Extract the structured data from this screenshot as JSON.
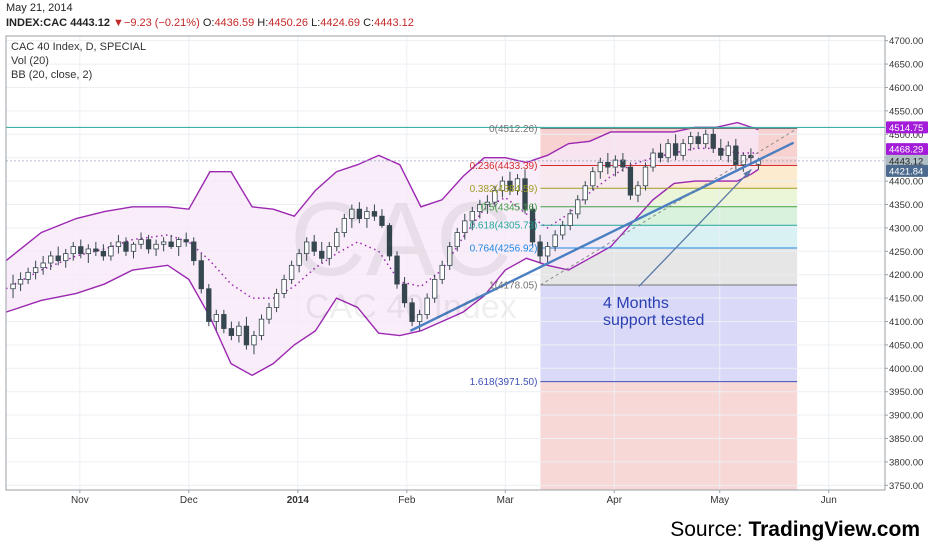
{
  "header": {
    "date": "May 21, 2014",
    "symbol": "INDEX:CAC",
    "last": "4443.12",
    "change_arrow": "▼",
    "change": "−9.23 (−0.21%)",
    "open_label": "O:",
    "open": "4436.59",
    "high_label": "H:",
    "high": "4450.26",
    "low_label": "L:",
    "low": "4424.69",
    "close_label": "C:",
    "close": "4443.12"
  },
  "legend": {
    "title": "CAC 40 Index, D, SPECIAL",
    "vol": "Vol (20)",
    "bb": "BB (20, close, 2)"
  },
  "watermark": {
    "big": "CAC",
    "sub": "CAC 40 Index"
  },
  "annotation": {
    "line1": "4 Months",
    "line2": "support tested"
  },
  "source": {
    "prefix": "Source: ",
    "name": "TradingView.com"
  },
  "colors": {
    "bollinger": "#9c27b0",
    "bollinger_fill": "#f6e8f8",
    "candle_up": "#ffffff",
    "candle_down": "#37474f",
    "trendline": "#4a7fc1",
    "price_line": "#26a69a",
    "tag_purple": "#a31ad9",
    "tag_teal": "#28b39a",
    "tag_slate": "#4b6a8d",
    "tag_gray": "#b0bec5"
  },
  "chart_data": {
    "type": "candlestick",
    "title": "CAC 40 Index, D, SPECIAL",
    "ylim": [
      3740,
      4710
    ],
    "y_ticks": [
      "4700.00",
      "4650.00",
      "4600.00",
      "4550.00",
      "4500.00",
      "4450.00",
      "4400.00",
      "4350.00",
      "4300.00",
      "4250.00",
      "4200.00",
      "4150.00",
      "4100.00",
      "4050.00",
      "4000.00",
      "3950.00",
      "3900.00",
      "3850.00",
      "3800.00",
      "3750.00"
    ],
    "x_ticks": [
      "Nov",
      "Dec",
      "2014",
      "Feb",
      "Mar",
      "Apr",
      "May",
      "Jun"
    ],
    "x_tick_days": [
      21,
      52,
      83,
      114,
      142,
      173,
      203,
      234
    ],
    "x_range_days": [
      0,
      250
    ],
    "price_levels": [
      {
        "label": "4514.75",
        "value": 4514.75,
        "color": "tag_purple"
      },
      {
        "label": "4468.29",
        "value": 4468.29,
        "color": "tag_purple"
      },
      {
        "label": "4443.12",
        "value": 4443.12,
        "color": "tag_gray"
      },
      {
        "label": "4421.84",
        "value": 4421.84,
        "color": "tag_slate"
      }
    ],
    "fibonacci": {
      "day_start": 152,
      "day_end": 225,
      "levels": [
        {
          "ratio": "0",
          "label": "0(4512.26)",
          "value": 4512.26,
          "color": "#777777",
          "band": "#f7c9c9"
        },
        {
          "ratio": "0.236",
          "label": "0.236(4433.39)",
          "value": 4433.39,
          "color": "#d32f2f",
          "band": "#fbe7c6"
        },
        {
          "ratio": "0.382",
          "label": "0.382(4384.59)",
          "value": 4384.59,
          "color": "#9e9d24",
          "band": "#e6f4d0"
        },
        {
          "ratio": "0.5",
          "label": "0.5(4345.16)",
          "value": 4345.16,
          "color": "#43a047",
          "band": "#d2f0d8"
        },
        {
          "ratio": "0.618",
          "label": "0.618(4305.73)",
          "value": 4305.73,
          "color": "#26a69a",
          "band": "#d4eef2"
        },
        {
          "ratio": "0.764",
          "label": "0.764(4256.92)",
          "value": 4256.92,
          "color": "#1e88e5",
          "band": "#e2e2e2"
        },
        {
          "ratio": "1",
          "label": "1(4178.05)",
          "value": 4178.05,
          "color": "#757575",
          "band": "#d3d3f7"
        },
        {
          "ratio": "1.618",
          "label": "1.618(3971.50)",
          "value": 3971.5,
          "color": "#3f51b5",
          "band": "#f7d0d0"
        }
      ]
    },
    "trendline": {
      "from": {
        "day": 115,
        "value": 4080
      },
      "to": {
        "day": 224,
        "value": 4482
      }
    },
    "dashed_channel": {
      "from": {
        "day": 152,
        "value": 4178
      },
      "to": {
        "day": 225,
        "value": 4512
      }
    },
    "annotation_arrow": {
      "from": {
        "day": 180,
        "value": 4175
      },
      "to": {
        "day": 212,
        "value": 4425
      }
    },
    "bollinger": {
      "days": [
        0,
        10,
        20,
        28,
        36,
        46,
        52,
        58,
        64,
        70,
        76,
        82,
        88,
        94,
        100,
        106,
        112,
        118,
        124,
        130,
        136,
        142,
        148,
        154,
        160,
        166,
        172,
        178,
        184,
        190,
        196,
        202,
        208,
        212,
        214
      ],
      "middle": [
        4170,
        4210,
        4240,
        4255,
        4275,
        4285,
        4270,
        4230,
        4180,
        4150,
        4150,
        4175,
        4215,
        4245,
        4270,
        4250,
        4185,
        4175,
        4210,
        4280,
        4340,
        4365,
        4330,
        4300,
        4330,
        4375,
        4410,
        4435,
        4450,
        4460,
        4470,
        4470,
        4460,
        4460,
        4460
      ],
      "upper": [
        4230,
        4290,
        4320,
        4335,
        4345,
        4345,
        4340,
        4420,
        4420,
        4345,
        4340,
        4325,
        4380,
        4420,
        4435,
        4455,
        4435,
        4345,
        4360,
        4410,
        4450,
        4450,
        4440,
        4455,
        4480,
        4485,
        4505,
        4505,
        4505,
        4505,
        4515,
        4515,
        4525,
        4515,
        4510
      ],
      "lower": [
        4120,
        4145,
        4160,
        4180,
        4210,
        4220,
        4190,
        4110,
        4010,
        3985,
        4010,
        4050,
        4080,
        4150,
        4130,
        4075,
        4070,
        4080,
        4100,
        4120,
        4155,
        4210,
        4235,
        4220,
        4210,
        4235,
        4260,
        4310,
        4360,
        4395,
        4400,
        4400,
        4400,
        4415,
        4425
      ]
    },
    "candles": [
      {
        "o": 4170,
        "h": 4200,
        "l": 4150,
        "c": 4180
      },
      {
        "o": 4180,
        "h": 4205,
        "l": 4165,
        "c": 4190
      },
      {
        "o": 4190,
        "h": 4215,
        "l": 4180,
        "c": 4205
      },
      {
        "o": 4205,
        "h": 4230,
        "l": 4190,
        "c": 4215
      },
      {
        "o": 4215,
        "h": 4240,
        "l": 4200,
        "c": 4225
      },
      {
        "o": 4225,
        "h": 4250,
        "l": 4210,
        "c": 4240
      },
      {
        "o": 4240,
        "h": 4260,
        "l": 4220,
        "c": 4230
      },
      {
        "o": 4230,
        "h": 4255,
        "l": 4215,
        "c": 4245
      },
      {
        "o": 4245,
        "h": 4270,
        "l": 4230,
        "c": 4260
      },
      {
        "o": 4260,
        "h": 4275,
        "l": 4235,
        "c": 4245
      },
      {
        "o": 4245,
        "h": 4265,
        "l": 4225,
        "c": 4255
      },
      {
        "o": 4255,
        "h": 4270,
        "l": 4240,
        "c": 4250
      },
      {
        "o": 4250,
        "h": 4265,
        "l": 4230,
        "c": 4240
      },
      {
        "o": 4240,
        "h": 4270,
        "l": 4230,
        "c": 4260
      },
      {
        "o": 4260,
        "h": 4285,
        "l": 4245,
        "c": 4270
      },
      {
        "o": 4270,
        "h": 4280,
        "l": 4240,
        "c": 4250
      },
      {
        "o": 4250,
        "h": 4270,
        "l": 4235,
        "c": 4265
      },
      {
        "o": 4265,
        "h": 4290,
        "l": 4255,
        "c": 4275
      },
      {
        "o": 4275,
        "h": 4285,
        "l": 4245,
        "c": 4255
      },
      {
        "o": 4255,
        "h": 4275,
        "l": 4240,
        "c": 4265
      },
      {
        "o": 4265,
        "h": 4280,
        "l": 4250,
        "c": 4270
      },
      {
        "o": 4270,
        "h": 4285,
        "l": 4255,
        "c": 4260
      },
      {
        "o": 4260,
        "h": 4280,
        "l": 4240,
        "c": 4275
      },
      {
        "o": 4275,
        "h": 4290,
        "l": 4260,
        "c": 4270
      },
      {
        "o": 4270,
        "h": 4280,
        "l": 4220,
        "c": 4230
      },
      {
        "o": 4230,
        "h": 4245,
        "l": 4160,
        "c": 4170
      },
      {
        "o": 4170,
        "h": 4180,
        "l": 4090,
        "c": 4100
      },
      {
        "o": 4100,
        "h": 4125,
        "l": 4080,
        "c": 4115
      },
      {
        "o": 4115,
        "h": 4125,
        "l": 4075,
        "c": 4085
      },
      {
        "o": 4085,
        "h": 4100,
        "l": 4060,
        "c": 4070
      },
      {
        "o": 4070,
        "h": 4100,
        "l": 4055,
        "c": 4090
      },
      {
        "o": 4090,
        "h": 4110,
        "l": 4040,
        "c": 4050
      },
      {
        "o": 4050,
        "h": 4080,
        "l": 4030,
        "c": 4070
      },
      {
        "o": 4070,
        "h": 4115,
        "l": 4060,
        "c": 4105
      },
      {
        "o": 4105,
        "h": 4140,
        "l": 4095,
        "c": 4130
      },
      {
        "o": 4130,
        "h": 4170,
        "l": 4120,
        "c": 4160
      },
      {
        "o": 4160,
        "h": 4200,
        "l": 4150,
        "c": 4190
      },
      {
        "o": 4190,
        "h": 4230,
        "l": 4180,
        "c": 4220
      },
      {
        "o": 4220,
        "h": 4255,
        "l": 4205,
        "c": 4245
      },
      {
        "o": 4245,
        "h": 4280,
        "l": 4230,
        "c": 4270
      },
      {
        "o": 4270,
        "h": 4285,
        "l": 4240,
        "c": 4250
      },
      {
        "o": 4250,
        "h": 4270,
        "l": 4225,
        "c": 4235
      },
      {
        "o": 4235,
        "h": 4270,
        "l": 4220,
        "c": 4260
      },
      {
        "o": 4260,
        "h": 4300,
        "l": 4250,
        "c": 4290
      },
      {
        "o": 4290,
        "h": 4330,
        "l": 4280,
        "c": 4320
      },
      {
        "o": 4320,
        "h": 4350,
        "l": 4300,
        "c": 4340
      },
      {
        "o": 4340,
        "h": 4355,
        "l": 4310,
        "c": 4320
      },
      {
        "o": 4320,
        "h": 4345,
        "l": 4300,
        "c": 4335
      },
      {
        "o": 4335,
        "h": 4350,
        "l": 4315,
        "c": 4325
      },
      {
        "o": 4325,
        "h": 4340,
        "l": 4300,
        "c": 4305
      },
      {
        "o": 4305,
        "h": 4310,
        "l": 4230,
        "c": 4240
      },
      {
        "o": 4240,
        "h": 4250,
        "l": 4170,
        "c": 4180
      },
      {
        "o": 4180,
        "h": 4195,
        "l": 4130,
        "c": 4140
      },
      {
        "o": 4140,
        "h": 4150,
        "l": 4090,
        "c": 4100
      },
      {
        "o": 4100,
        "h": 4125,
        "l": 4080,
        "c": 4115
      },
      {
        "o": 4115,
        "h": 4160,
        "l": 4105,
        "c": 4150
      },
      {
        "o": 4150,
        "h": 4200,
        "l": 4140,
        "c": 4190
      },
      {
        "o": 4190,
        "h": 4230,
        "l": 4180,
        "c": 4220
      },
      {
        "o": 4220,
        "h": 4270,
        "l": 4210,
        "c": 4260
      },
      {
        "o": 4260,
        "h": 4300,
        "l": 4250,
        "c": 4290
      },
      {
        "o": 4290,
        "h": 4330,
        "l": 4275,
        "c": 4315
      },
      {
        "o": 4315,
        "h": 4345,
        "l": 4295,
        "c": 4335
      },
      {
        "o": 4335,
        "h": 4360,
        "l": 4320,
        "c": 4350
      },
      {
        "o": 4350,
        "h": 4370,
        "l": 4330,
        "c": 4355
      },
      {
        "o": 4355,
        "h": 4390,
        "l": 4345,
        "c": 4380
      },
      {
        "o": 4380,
        "h": 4410,
        "l": 4365,
        "c": 4400
      },
      {
        "o": 4400,
        "h": 4420,
        "l": 4370,
        "c": 4380
      },
      {
        "o": 4380,
        "h": 4415,
        "l": 4370,
        "c": 4405
      },
      {
        "o": 4405,
        "h": 4425,
        "l": 4330,
        "c": 4340
      },
      {
        "o": 4340,
        "h": 4350,
        "l": 4260,
        "c": 4270
      },
      {
        "o": 4270,
        "h": 4285,
        "l": 4225,
        "c": 4240
      },
      {
        "o": 4240,
        "h": 4270,
        "l": 4225,
        "c": 4260
      },
      {
        "o": 4260,
        "h": 4295,
        "l": 4250,
        "c": 4285
      },
      {
        "o": 4285,
        "h": 4315,
        "l": 4275,
        "c": 4305
      },
      {
        "o": 4305,
        "h": 4340,
        "l": 4295,
        "c": 4330
      },
      {
        "o": 4330,
        "h": 4370,
        "l": 4320,
        "c": 4360
      },
      {
        "o": 4360,
        "h": 4400,
        "l": 4350,
        "c": 4390
      },
      {
        "o": 4390,
        "h": 4430,
        "l": 4380,
        "c": 4420
      },
      {
        "o": 4420,
        "h": 4450,
        "l": 4405,
        "c": 4440
      },
      {
        "o": 4440,
        "h": 4460,
        "l": 4415,
        "c": 4430
      },
      {
        "o": 4430,
        "h": 4455,
        "l": 4410,
        "c": 4445
      },
      {
        "o": 4445,
        "h": 4460,
        "l": 4420,
        "c": 4430
      },
      {
        "o": 4430,
        "h": 4440,
        "l": 4360,
        "c": 4370
      },
      {
        "o": 4370,
        "h": 4400,
        "l": 4355,
        "c": 4390
      },
      {
        "o": 4390,
        "h": 4440,
        "l": 4380,
        "c": 4430
      },
      {
        "o": 4430,
        "h": 4470,
        "l": 4420,
        "c": 4460
      },
      {
        "o": 4460,
        "h": 4480,
        "l": 4440,
        "c": 4450
      },
      {
        "o": 4450,
        "h": 4490,
        "l": 4440,
        "c": 4480
      },
      {
        "o": 4480,
        "h": 4500,
        "l": 4445,
        "c": 4455
      },
      {
        "o": 4455,
        "h": 4490,
        "l": 4445,
        "c": 4480
      },
      {
        "o": 4480,
        "h": 4505,
        "l": 4465,
        "c": 4495
      },
      {
        "o": 4495,
        "h": 4505,
        "l": 4470,
        "c": 4480
      },
      {
        "o": 4480,
        "h": 4510,
        "l": 4470,
        "c": 4500
      },
      {
        "o": 4500,
        "h": 4512,
        "l": 4460,
        "c": 4470
      },
      {
        "o": 4470,
        "h": 4490,
        "l": 4445,
        "c": 4455
      },
      {
        "o": 4455,
        "h": 4485,
        "l": 4440,
        "c": 4475
      },
      {
        "o": 4475,
        "h": 4490,
        "l": 4425,
        "c": 4435
      },
      {
        "o": 4435,
        "h": 4460,
        "l": 4420,
        "c": 4455
      },
      {
        "o": 4455,
        "h": 4470,
        "l": 4436,
        "c": 4450
      },
      {
        "o": 4436,
        "h": 4450,
        "l": 4425,
        "c": 4443
      }
    ]
  }
}
